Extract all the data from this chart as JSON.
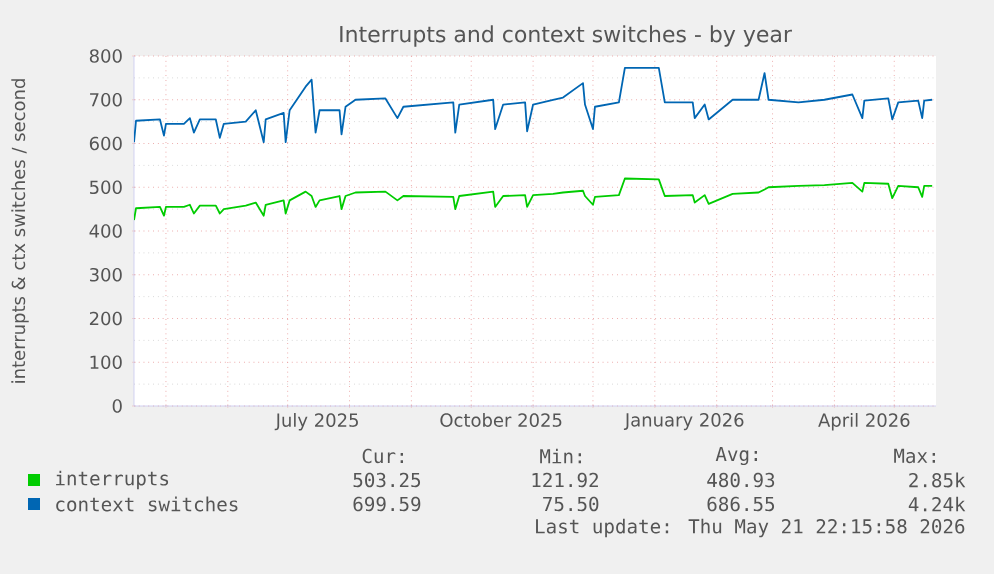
{
  "chart_data": {
    "type": "line",
    "title": "Interrupts and context switches - by year",
    "ylabel": "interrupts & ctx switches / second",
    "x": [
      "2025-04-15",
      "2025-04-16",
      "2025-04-28",
      "2025-04-30",
      "2025-05-01",
      "2025-05-10",
      "2025-05-13",
      "2025-05-15",
      "2025-05-18",
      "2025-05-26",
      "2025-05-28",
      "2025-05-30",
      "2025-06-10",
      "2025-06-15",
      "2025-06-19",
      "2025-06-20",
      "2025-06-29",
      "2025-06-30",
      "2025-07-02",
      "2025-07-10",
      "2025-07-13",
      "2025-07-15",
      "2025-07-17",
      "2025-07-27",
      "2025-07-28",
      "2025-07-30",
      "2025-08-04",
      "2025-08-19",
      "2025-08-25",
      "2025-08-28",
      "2025-09-22",
      "2025-09-23",
      "2025-09-25",
      "2025-10-12",
      "2025-10-13",
      "2025-10-17",
      "2025-10-28",
      "2025-10-29",
      "2025-11-01",
      "2025-11-11",
      "2025-11-16",
      "2025-11-26",
      "2025-11-27",
      "2025-12-01",
      "2025-12-02",
      "2025-12-14",
      "2025-12-17",
      "2026-01-03",
      "2026-01-06",
      "2026-01-20",
      "2026-01-21",
      "2026-01-26",
      "2026-01-28",
      "2026-02-09",
      "2026-02-22",
      "2026-02-25",
      "2026-02-27",
      "2026-03-14",
      "2026-03-27",
      "2026-04-10",
      "2026-04-15",
      "2026-04-16",
      "2026-04-28",
      "2026-04-30",
      "2026-05-03",
      "2026-05-13",
      "2026-05-15",
      "2026-05-16",
      "2026-05-20"
    ],
    "series": [
      {
        "name": "interrupts",
        "color": "#00cc00",
        "values": [
          425,
          452,
          455,
          435,
          455,
          455,
          460,
          440,
          458,
          458,
          440,
          450,
          458,
          465,
          435,
          460,
          470,
          440,
          470,
          490,
          480,
          455,
          470,
          480,
          450,
          480,
          488,
          490,
          470,
          480,
          478,
          450,
          480,
          490,
          455,
          480,
          482,
          455,
          482,
          485,
          488,
          492,
          480,
          460,
          478,
          482,
          520,
          518,
          480,
          482,
          465,
          482,
          462,
          485,
          488,
          495,
          500,
          503,
          505,
          510,
          490,
          510,
          508,
          475,
          503,
          500,
          478,
          503,
          503
        ]
      },
      {
        "name": "context switches",
        "color": "#0066b3",
        "values": [
          603,
          652,
          655,
          618,
          645,
          645,
          658,
          625,
          655,
          655,
          613,
          645,
          650,
          676,
          603,
          655,
          670,
          603,
          676,
          730,
          746,
          625,
          676,
          676,
          621,
          684,
          700,
          703,
          658,
          684,
          694,
          625,
          689,
          700,
          633,
          689,
          694,
          628,
          689,
          700,
          705,
          738,
          689,
          633,
          684,
          694,
          773,
          773,
          694,
          694,
          658,
          689,
          655,
          700,
          700,
          761,
          700,
          694,
          700,
          712,
          658,
          698,
          703,
          655,
          694,
          698,
          658,
          698,
          700
        ]
      }
    ],
    "xlim": [
      "2025-04-15",
      "2026-05-21T22:15"
    ],
    "xticks": [
      {
        "value": "2025-05-01",
        "label": null
      },
      {
        "value": "2025-06-01",
        "label": null
      },
      {
        "value": "2025-07-01",
        "label": null
      },
      {
        "value": "2025-08-01",
        "label": null
      },
      {
        "value": "2025-09-01",
        "label": null
      },
      {
        "value": "2025-10-01",
        "label": null
      },
      {
        "value": "2025-11-01",
        "label": null
      },
      {
        "value": "2025-12-01",
        "label": null
      },
      {
        "value": "2026-01-01",
        "label": null
      },
      {
        "value": "2026-02-01",
        "label": null
      },
      {
        "value": "2026-03-01",
        "label": null
      },
      {
        "value": "2026-04-01",
        "label": null
      },
      {
        "value": "2026-05-01",
        "label": null
      },
      {
        "value": "2025-07-16",
        "label": "July 2025"
      },
      {
        "value": "2025-10-16",
        "label": "October 2025"
      },
      {
        "value": "2026-01-16",
        "label": "January 2026"
      },
      {
        "value": "2026-04-16",
        "label": "April 2026"
      }
    ],
    "ylim": [
      0,
      800
    ],
    "yticks": [
      0,
      100,
      200,
      300,
      400,
      500,
      600,
      700,
      800
    ],
    "grid": true,
    "legend": "bottom",
    "marker": "none",
    "line_style": "solid",
    "annotations": [
      "Cur:",
      "Min:",
      "Avg:",
      "Max:",
      "503.25",
      "121.92",
      "480.93",
      "2.85k",
      "699.59",
      "75.50",
      "686.55",
      "4.24k",
      "Last update: Thu May 21 22:15:58 2026"
    ]
  }
}
